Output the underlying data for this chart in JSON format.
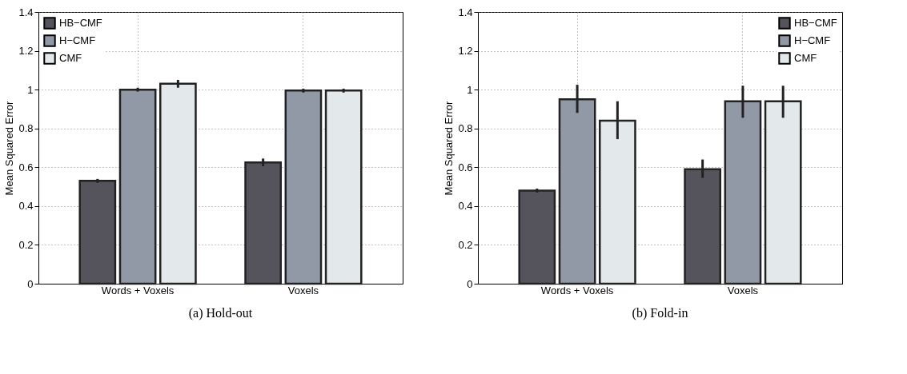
{
  "chart_data": [
    {
      "type": "bar",
      "title": "(a)  Hold-out",
      "ylabel": "Mean Squared Error",
      "categories": [
        "Words + Voxels",
        "Voxels"
      ],
      "series": [
        {
          "name": "HB−CMF",
          "color": "#55545c",
          "values": [
            0.53,
            0.625
          ],
          "errors": [
            0.01,
            0.02
          ]
        },
        {
          "name": "H−CMF",
          "color": "#9199a6",
          "values": [
            1.0,
            0.995
          ],
          "errors": [
            0.01,
            0.01
          ]
        },
        {
          "name": "CMF",
          "color": "#e3e8eb",
          "values": [
            1.03,
            0.995
          ],
          "errors": [
            0.02,
            0.01
          ]
        }
      ],
      "ylim": [
        0,
        1.4
      ],
      "yticks": [
        0,
        0.2,
        0.4,
        0.6,
        0.8,
        1,
        1.2,
        1.4
      ],
      "grid": true,
      "legend": "top left"
    },
    {
      "type": "bar",
      "title": "(b)  Fold-in",
      "ylabel": "Mean Squared Error",
      "categories": [
        "Words + Voxels",
        "Voxels"
      ],
      "series": [
        {
          "name": "HB−CMF",
          "color": "#55545c",
          "values": [
            0.48,
            0.59
          ],
          "errors": [
            0.01,
            [
              0.545,
              0.64
            ]
          ]
        },
        {
          "name": "H−CMF",
          "color": "#9199a6",
          "values": [
            0.95,
            0.94
          ],
          "errors": [
            [
              0.88,
              1.025
            ],
            [
              0.855,
              1.02
            ]
          ]
        },
        {
          "name": "CMF",
          "color": "#e3e8eb",
          "values": [
            0.84,
            0.94
          ],
          "errors": [
            [
              0.745,
              0.94
            ],
            [
              0.855,
              1.02
            ]
          ]
        }
      ],
      "ylim": [
        0,
        1.4
      ],
      "yticks": [
        0,
        0.2,
        0.4,
        0.6,
        0.8,
        1,
        1.2,
        1.4
      ],
      "grid": true,
      "legend": "top right"
    }
  ]
}
